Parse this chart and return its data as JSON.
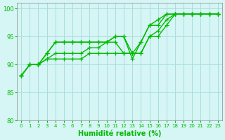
{
  "xlabel": "Humidité relative (%)",
  "bg_color": "#d6f5f5",
  "grid_color": "#aadddd",
  "line_color": "#00bb00",
  "xlim": [
    -0.5,
    23.5
  ],
  "ylim": [
    80,
    101
  ],
  "yticks": [
    80,
    85,
    90,
    95,
    100
  ],
  "xtick_labels": [
    "0",
    "1",
    "2",
    "3",
    "4",
    "5",
    "6",
    "7",
    "8",
    "9",
    "10",
    "11",
    "12",
    "13",
    "14",
    "15",
    "16",
    "17",
    "18",
    "19",
    "20",
    "21",
    "22",
    "23"
  ],
  "series": [
    [
      88,
      90,
      90,
      92,
      94,
      94,
      94,
      94,
      94,
      94,
      94,
      95,
      95,
      92,
      94,
      97,
      98,
      99,
      99,
      99,
      99,
      99,
      99,
      99
    ],
    [
      88,
      90,
      90,
      92,
      94,
      94,
      94,
      94,
      94,
      94,
      94,
      95,
      95,
      91,
      94,
      97,
      97,
      99,
      99,
      99,
      99,
      99,
      99,
      99
    ],
    [
      88,
      90,
      90,
      91,
      92,
      92,
      92,
      92,
      93,
      93,
      94,
      94,
      92,
      92,
      92,
      95,
      96,
      98,
      99,
      99,
      99,
      99,
      99,
      99
    ],
    [
      88,
      90,
      90,
      91,
      91,
      91,
      91,
      91,
      92,
      92,
      92,
      92,
      92,
      92,
      92,
      95,
      95,
      97,
      99,
      99,
      99,
      99,
      99,
      99
    ]
  ],
  "marker": "+",
  "markersize": 4,
  "linewidth": 1.0
}
